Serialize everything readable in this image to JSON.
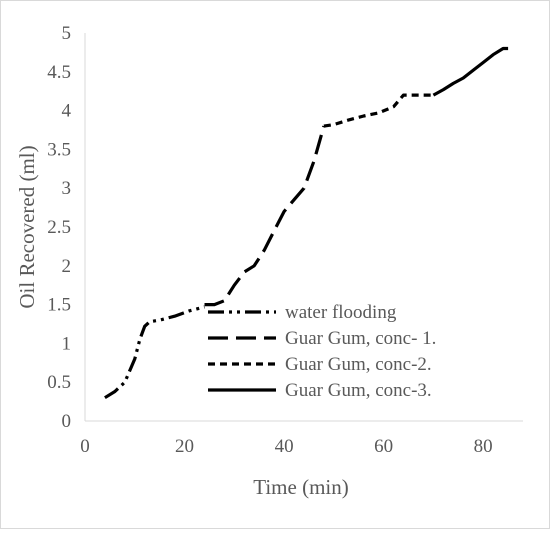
{
  "chart_data": {
    "type": "line",
    "title": "",
    "xlabel": "Time (min)",
    "ylabel": "Oil Recovered (ml)",
    "xlim": [
      0,
      88
    ],
    "ylim": [
      0,
      5
    ],
    "xticks": [
      "0",
      "20",
      "40",
      "60",
      "80"
    ],
    "yticks": [
      "0",
      "0.5",
      "1",
      "1.5",
      "2",
      "2.5",
      "3",
      "3.5",
      "4",
      "4.5",
      "5"
    ],
    "grid": false,
    "legend_position": "center-inside",
    "series": [
      {
        "name": "water flooding",
        "style": "dash-dot-dot",
        "color": "#000000",
        "x": [
          4,
          6,
          8,
          10,
          11,
          12,
          13,
          15,
          18,
          21,
          24
        ],
        "y": [
          0.3,
          0.38,
          0.5,
          0.8,
          1.05,
          1.22,
          1.28,
          1.3,
          1.35,
          1.42,
          1.47
        ]
      },
      {
        "name": "Guar Gum, conc- 1.",
        "style": "long-dash",
        "color": "#000000",
        "x": [
          24,
          26,
          28,
          30,
          32,
          34,
          36,
          38,
          40,
          42,
          44,
          46,
          48
        ],
        "y": [
          1.5,
          1.5,
          1.55,
          1.75,
          1.92,
          2.0,
          2.2,
          2.45,
          2.7,
          2.85,
          3.0,
          3.35,
          3.8
        ]
      },
      {
        "name": "Guar Gum, conc-2.",
        "style": "short-dash",
        "color": "#000000",
        "x": [
          48,
          50,
          53,
          56,
          59,
          62,
          64,
          66,
          68,
          70
        ],
        "y": [
          3.8,
          3.82,
          3.88,
          3.93,
          3.97,
          4.05,
          4.2,
          4.2,
          4.2,
          4.2
        ]
      },
      {
        "name": "Guar Gum, conc-3.",
        "style": "solid",
        "color": "#000000",
        "x": [
          70,
          72,
          74,
          76,
          78,
          80,
          82,
          84,
          85
        ],
        "y": [
          4.2,
          4.27,
          4.35,
          4.42,
          4.52,
          4.62,
          4.72,
          4.8,
          4.8
        ]
      }
    ]
  }
}
